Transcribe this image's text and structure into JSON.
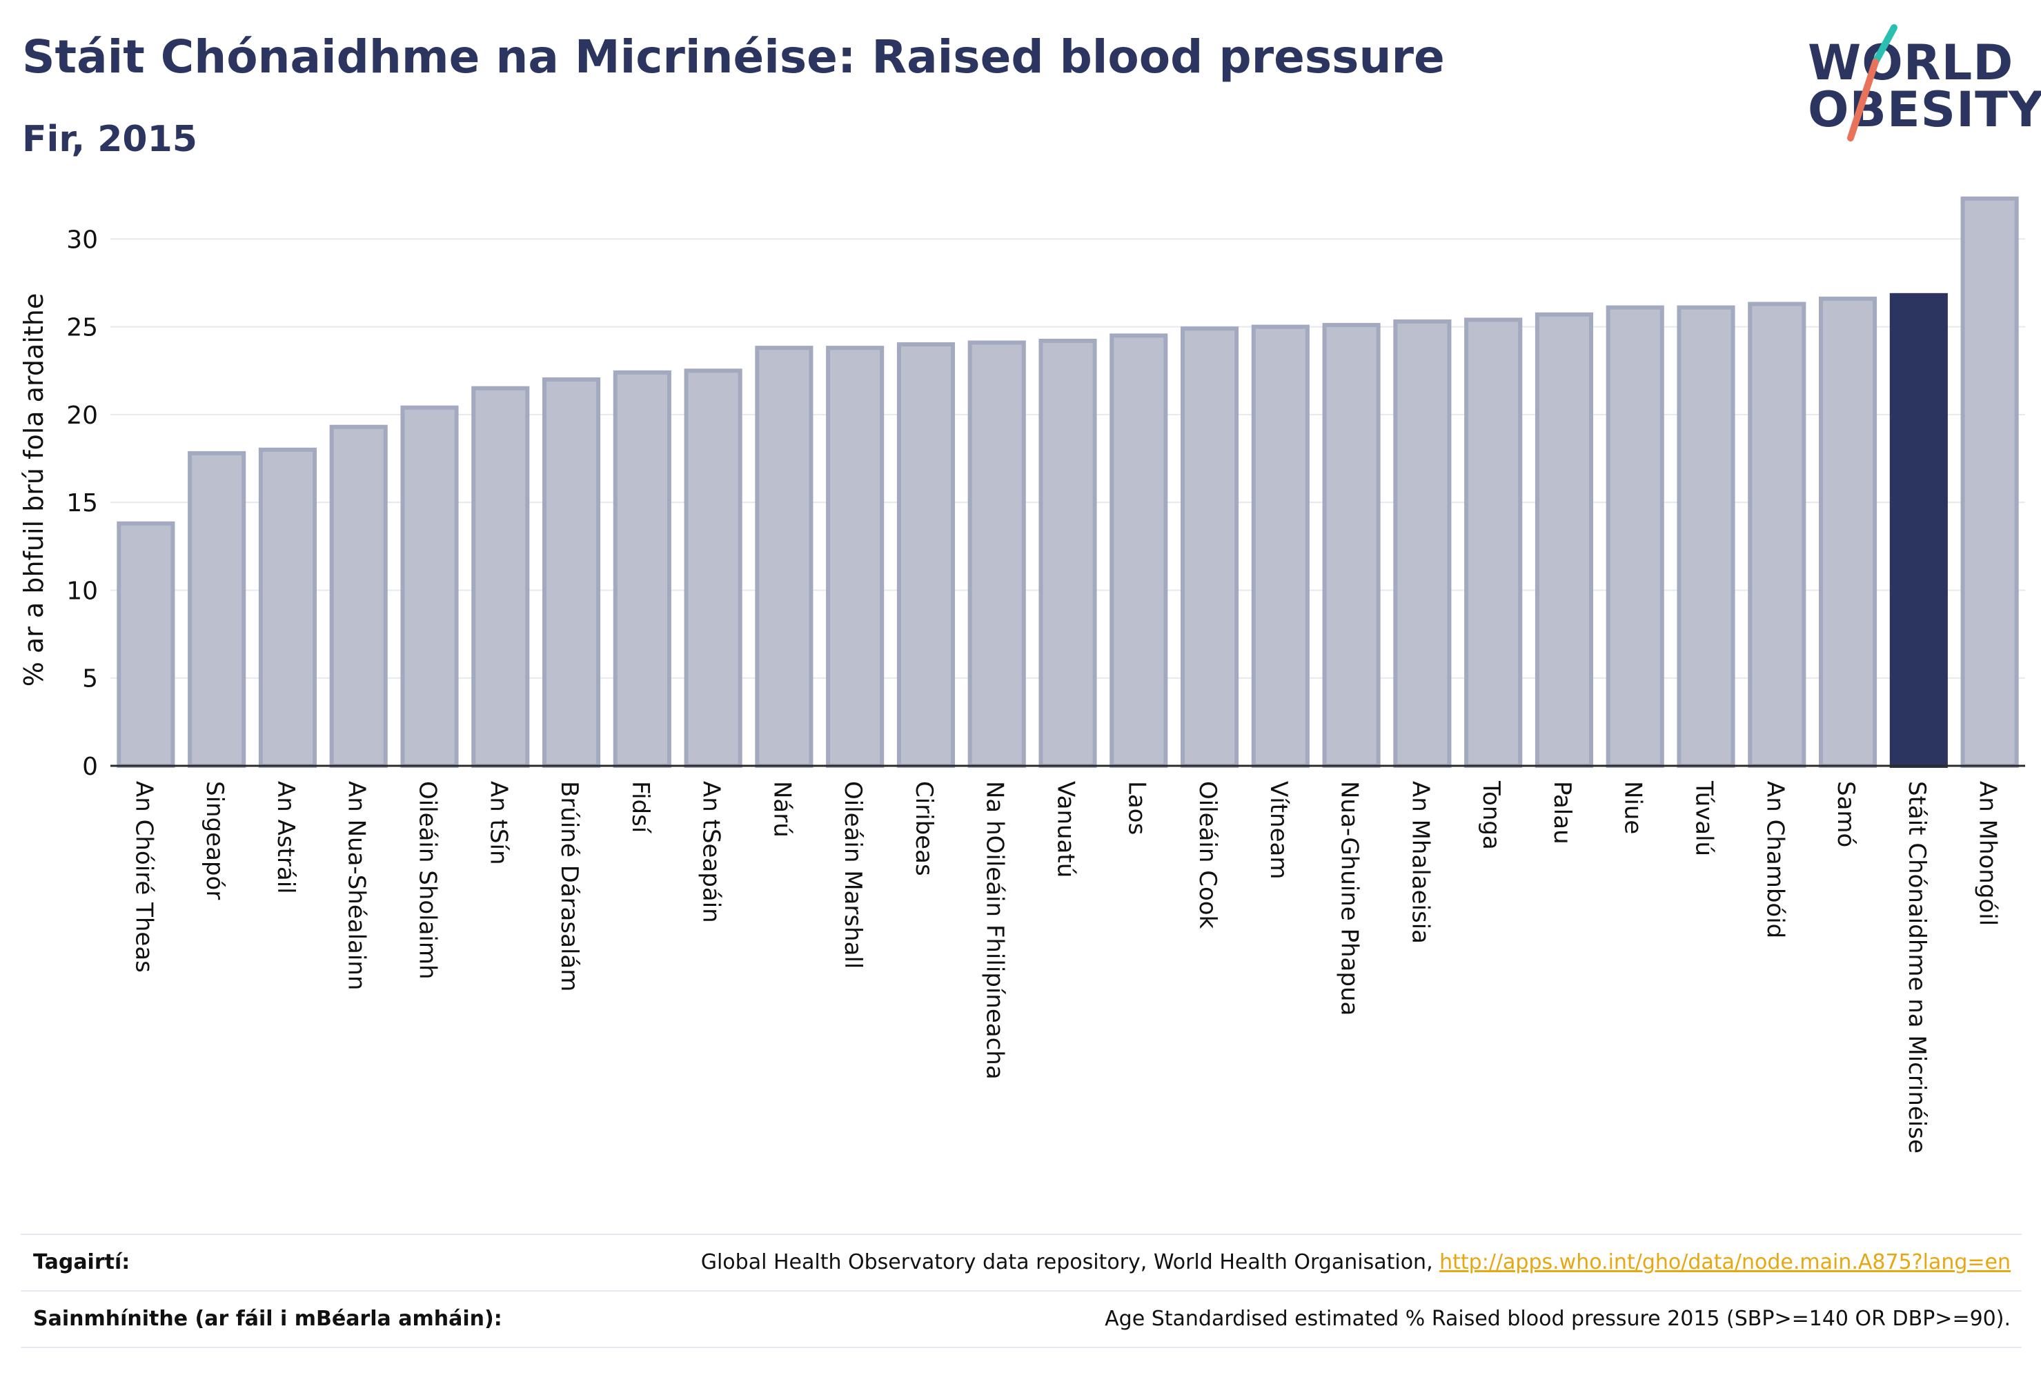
{
  "header": {
    "title": "Stáit Chónaidhme na Micrinéise: Raised blood pressure",
    "subtitle": "Fir, 2015"
  },
  "logo": {
    "line1": "WORLD",
    "line2": "OBESITY",
    "accent_colors": [
      "#2bbfb3",
      "#e8735a"
    ]
  },
  "chart_data": {
    "type": "bar",
    "ylabel": "% ar a bhfuil brú fola ardaithe",
    "ylim": [
      0,
      33
    ],
    "yticks": [
      0,
      5,
      10,
      15,
      20,
      25,
      30
    ],
    "grid": true,
    "highlight_category": "Stáit Chónaidhme na Micrinéise",
    "colors": {
      "bar": "#bcc0ce",
      "bar_border": "#a3a9bf",
      "highlight": "#2b3560"
    },
    "categories": [
      "An Chóiré Theas",
      "Singeapór",
      "An Astráil",
      "An Nua-Shéalainn",
      "Oileáin Sholaimh",
      "An tSín",
      "Brúiné Dárasalám",
      "Fidsí",
      "An tSeapáin",
      "Nárú",
      "Oileáin Marshall",
      "Ciribeas",
      "Na hOileáin Fhilipíneacha",
      "Vanuatú",
      "Laos",
      "Oileáin Cook",
      "Vítneam",
      "Nua-Ghuine Phapua",
      "An Mhalaeisia",
      "Tonga",
      "Palau",
      "Niue",
      "Túvalú",
      "An Chambóid",
      "Samó",
      "Stáit Chónaidhme na Micrinéise",
      "An Mhongóil"
    ],
    "values": [
      13.8,
      17.8,
      18.0,
      19.3,
      20.4,
      21.5,
      22.0,
      22.4,
      22.5,
      23.8,
      23.8,
      24.0,
      24.1,
      24.2,
      24.5,
      24.9,
      25.0,
      25.1,
      25.3,
      25.4,
      25.7,
      26.1,
      26.1,
      26.3,
      26.6,
      26.8,
      32.3
    ]
  },
  "footer": {
    "references_label": "Tagairtí:",
    "references_text": "Global Health Observatory data repository, World Health Organisation, ",
    "references_link": "http://apps.who.int/gho/data/node.main.A875?lang=en",
    "definitions_label": "Sainmhínithe (ar fáil i mBéarla amháin):",
    "definitions_text": "Age Standardised estimated % Raised blood pressure 2015 (SBP>=140 OR DBP>=90)."
  }
}
